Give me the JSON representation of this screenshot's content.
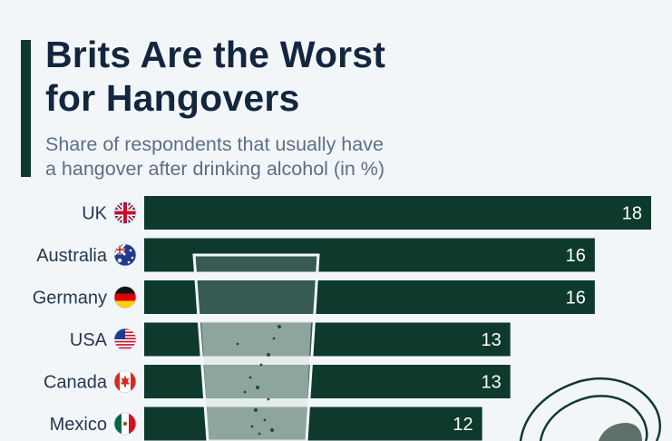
{
  "header": {
    "title_line1": "Brits Are the Worst",
    "title_line2": "for Hangovers",
    "subtitle_line1": "Share of respondents that usually have",
    "subtitle_line2": "a hangover after drinking alcohol (in %)"
  },
  "colors": {
    "bar": "#0e3a2e",
    "title": "#13263f",
    "subtitle": "#5c6f85",
    "background": "#f3f6f9"
  },
  "chart_data": {
    "type": "bar",
    "orientation": "horizontal",
    "title": "Brits Are the Worst for Hangovers",
    "subtitle": "Share of respondents that usually have a hangover after drinking alcohol (in %)",
    "categories": [
      "UK",
      "Australia",
      "Germany",
      "USA",
      "Canada",
      "Mexico"
    ],
    "values": [
      18,
      16,
      16,
      13,
      13,
      12
    ],
    "flags": [
      "uk-flag-icon",
      "australia-flag-icon",
      "germany-flag-icon",
      "usa-flag-icon",
      "canada-flag-icon",
      "mexico-flag-icon"
    ],
    "xlim": [
      0,
      18
    ],
    "grid": false,
    "data_labels": true
  }
}
